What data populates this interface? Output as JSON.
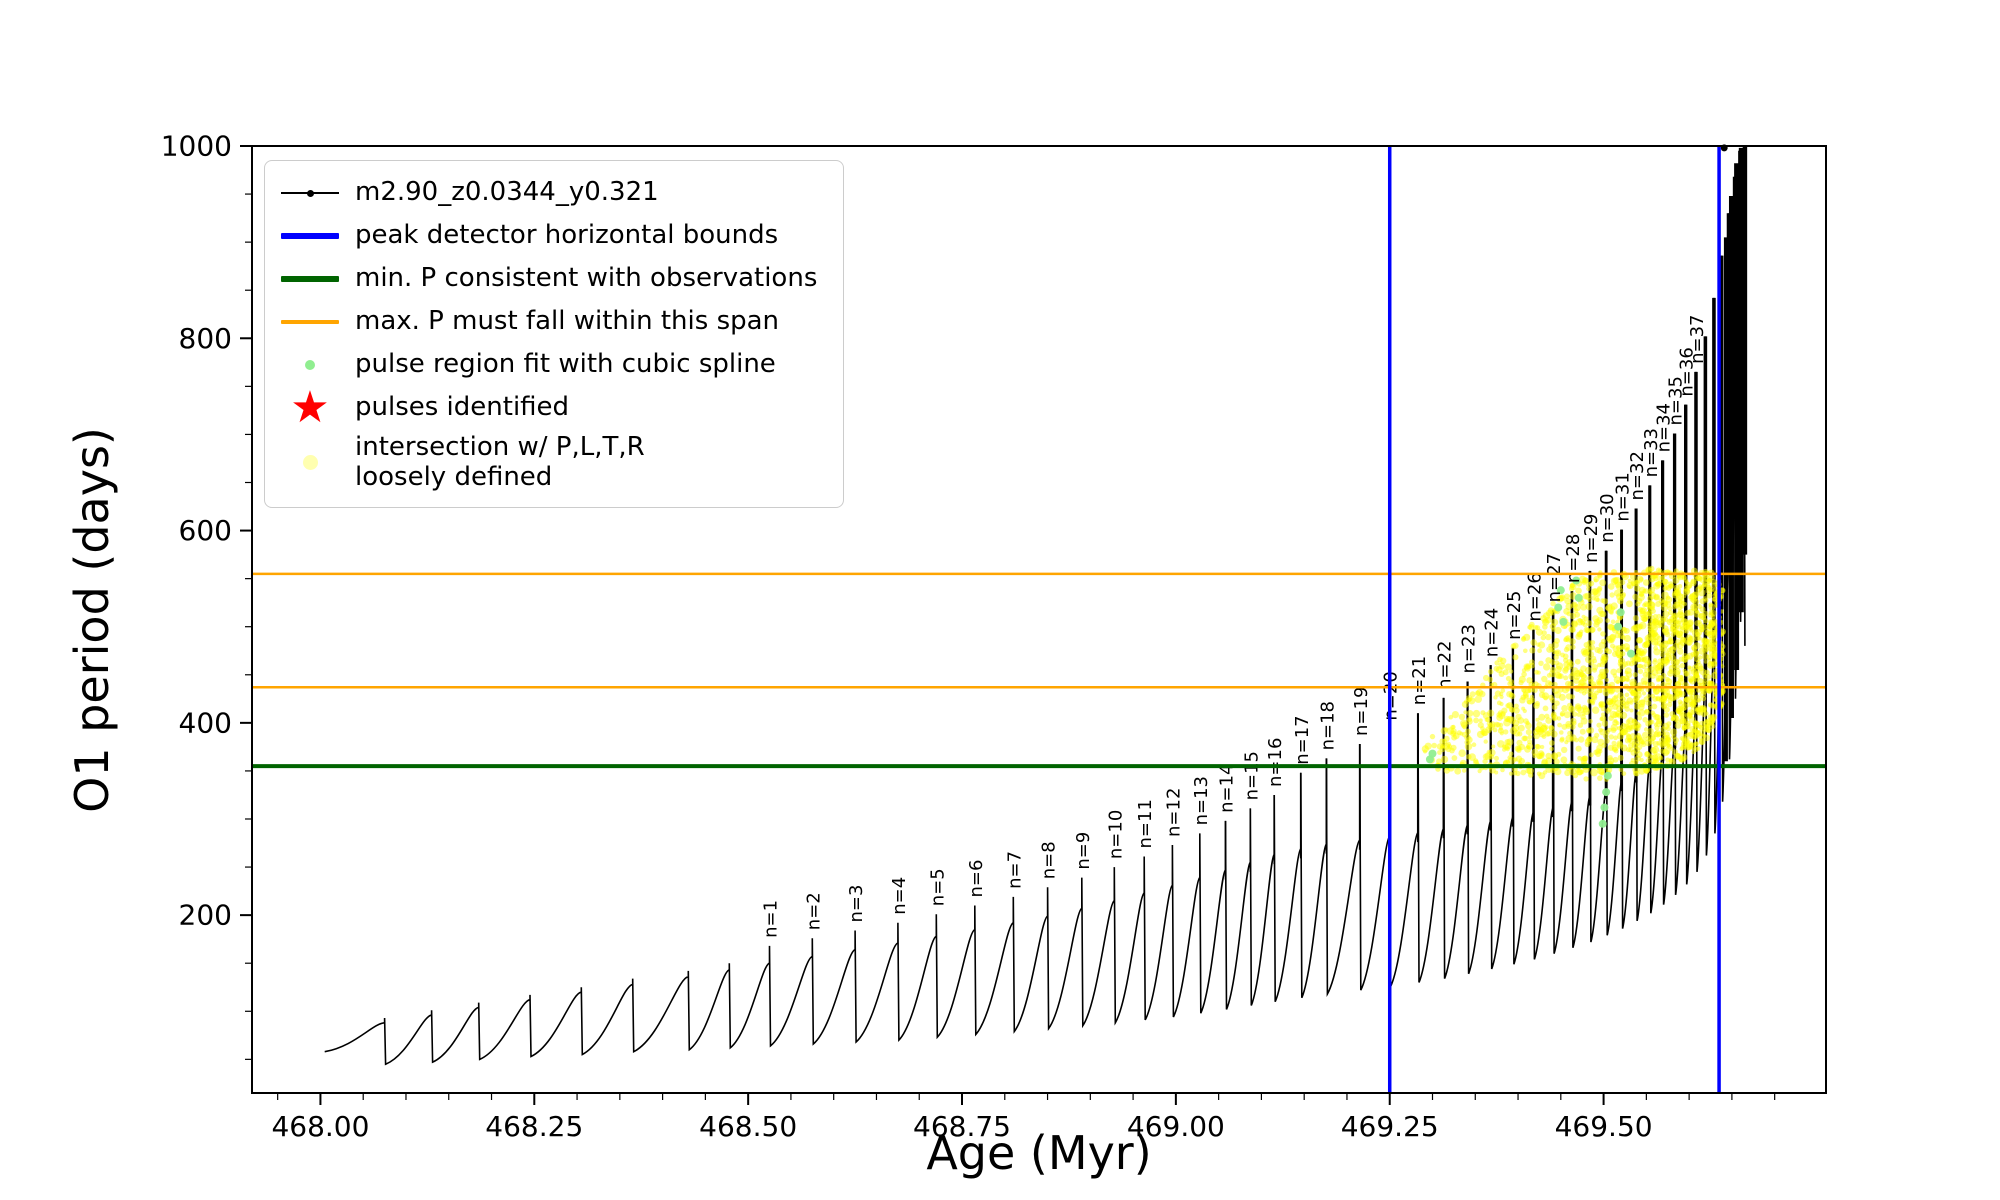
{
  "axes": {
    "xlabel": "Age (Myr)",
    "ylabel": "O1 period (days)"
  },
  "legend": {
    "entries": [
      {
        "marker": "line-dot",
        "color": "#000000",
        "label": "m2.90_z0.0344_y0.321"
      },
      {
        "marker": "line-thick",
        "color": "#0000ff",
        "label": "peak detector horizontal bounds"
      },
      {
        "marker": "line-thick",
        "color": "#006400",
        "label": "min. P consistent with observations"
      },
      {
        "marker": "line-thin",
        "color": "#ffa500",
        "label": "max. P must fall within this span"
      },
      {
        "marker": "dot-small",
        "color": "#90ee90",
        "label": "pulse region fit with cubic spline"
      },
      {
        "marker": "star",
        "color": "#ff0000",
        "label": "pulses identified"
      },
      {
        "marker": "dot-big",
        "color": "#ffffb0",
        "label": "intersection w/ P,L,T,R\nloosely defined"
      }
    ]
  },
  "chart_data": {
    "type": "line",
    "title": "",
    "xlabel": "Age (Myr)",
    "ylabel": "O1 period (days)",
    "xlim": [
      467.92,
      469.76
    ],
    "ylim": [
      15,
      1000
    ],
    "grid": false,
    "legend_position": "upper left",
    "series_name": "m2.90_z0.0344_y0.321",
    "xticks": {
      "values": [
        468.0,
        468.25,
        468.5,
        468.75,
        469.0,
        469.25,
        469.5
      ],
      "labels": [
        "468.00",
        "468.25",
        "468.50",
        "468.75",
        "469.00",
        "469.25",
        "469.50"
      ]
    },
    "yticks": {
      "values": [
        200,
        400,
        600,
        800,
        1000
      ],
      "labels": [
        "200",
        "400",
        "600",
        "800",
        "1000"
      ]
    },
    "xminor_step": 0.05,
    "yminor_step": 50,
    "line_color": "#000000",
    "vlines": {
      "color": "#0000ff",
      "x": [
        469.25,
        469.635
      ],
      "label": "peak detector horizontal bounds"
    },
    "hline_green": {
      "color": "#006400",
      "y": 355,
      "label": "min. P consistent with observations"
    },
    "hlines_orange": {
      "color": "#ffa500",
      "y": [
        437,
        555
      ],
      "label": "max. P must fall within this span"
    },
    "start": [
      468.005,
      58
    ],
    "end_drop": 480,
    "pulses": [
      [
        468.075,
        52,
        88,
        93,
        null
      ],
      [
        468.13,
        45,
        96,
        101,
        null
      ],
      [
        468.185,
        47,
        104,
        109,
        null
      ],
      [
        468.245,
        50,
        112,
        117,
        null
      ],
      [
        468.305,
        53,
        120,
        125,
        null
      ],
      [
        468.365,
        55,
        128,
        134,
        null
      ],
      [
        468.43,
        58,
        136,
        142,
        null
      ],
      [
        468.478,
        60,
        143,
        150,
        null
      ],
      [
        468.525,
        62,
        150,
        168,
        "n=1"
      ],
      [
        468.575,
        64,
        157,
        176,
        "n=2"
      ],
      [
        468.625,
        66,
        164,
        184,
        "n=3"
      ],
      [
        468.675,
        68,
        171,
        192,
        "n=4"
      ],
      [
        468.72,
        70,
        178,
        201,
        "n=5"
      ],
      [
        468.765,
        73,
        185,
        210,
        "n=6"
      ],
      [
        468.81,
        76,
        192,
        219,
        "n=7"
      ],
      [
        468.85,
        79,
        199,
        229,
        "n=8"
      ],
      [
        468.89,
        82,
        207,
        239,
        "n=9"
      ],
      [
        468.928,
        85,
        215,
        250,
        "n=10"
      ],
      [
        468.963,
        88,
        223,
        261,
        "n=11"
      ],
      [
        468.996,
        91,
        231,
        273,
        "n=12"
      ],
      [
        469.028,
        94,
        239,
        285,
        "n=13"
      ],
      [
        469.058,
        98,
        247,
        298,
        "n=14"
      ],
      [
        469.087,
        102,
        255,
        311,
        "n=15"
      ],
      [
        469.115,
        106,
        263,
        325,
        "n=16"
      ],
      [
        469.146,
        110,
        269,
        348,
        "n=17"
      ],
      [
        469.176,
        114,
        274,
        363,
        "n=18"
      ],
      [
        469.215,
        118,
        278,
        378,
        "n=19"
      ],
      [
        469.25,
        122,
        282,
        394,
        "n=20"
      ],
      [
        469.283,
        126,
        286,
        410,
        "n=21"
      ],
      [
        469.313,
        130,
        290,
        426,
        "n=22"
      ],
      [
        469.341,
        134,
        294,
        443,
        "n=23"
      ],
      [
        469.368,
        139,
        298,
        460,
        "n=24"
      ],
      [
        469.394,
        144,
        302,
        478,
        "n=25"
      ],
      [
        469.418,
        149,
        307,
        497,
        "n=26"
      ],
      [
        469.441,
        154,
        312,
        517,
        "n=27"
      ],
      [
        469.463,
        160,
        318,
        537,
        "n=28"
      ],
      [
        469.484,
        166,
        324,
        558,
        "n=29"
      ],
      [
        469.503,
        172,
        331,
        579,
        "n=30"
      ],
      [
        469.521,
        179,
        339,
        601,
        "n=31"
      ],
      [
        469.538,
        186,
        348,
        623,
        "n=32"
      ],
      [
        469.554,
        194,
        358,
        647,
        "n=33"
      ],
      [
        469.569,
        202,
        370,
        673,
        "n=34"
      ],
      [
        469.583,
        211,
        384,
        701,
        "n=35"
      ],
      [
        469.596,
        221,
        400,
        731,
        "n=36"
      ],
      [
        469.608,
        232,
        420,
        765,
        "n=37"
      ],
      [
        469.619,
        245,
        448,
        802,
        null
      ],
      [
        469.629,
        262,
        484,
        842,
        null
      ],
      [
        469.638,
        285,
        528,
        886,
        null
      ],
      [
        469.646,
        318,
        584,
        930,
        null
      ],
      [
        469.653,
        362,
        652,
        968,
        null
      ],
      [
        469.659,
        425,
        735,
        995,
        null
      ],
      [
        469.664,
        505,
        825,
        1000,
        null
      ]
    ],
    "cluster_lines": [
      [
        469.643,
        360,
        905,
        4
      ],
      [
        469.6495,
        405,
        948,
        5
      ],
      [
        469.6555,
        455,
        982,
        5
      ],
      [
        469.661,
        515,
        998,
        5
      ],
      [
        469.6655,
        575,
        1000,
        4
      ]
    ],
    "top_point": [
      469.641,
      998
    ],
    "yellow_band": {
      "color": "#ffff00",
      "opacity": 0.5,
      "count": 1800,
      "seed": 7,
      "x_bias": 0.5,
      "points": [
        [
          469.283,
          352,
          370
        ],
        [
          469.315,
          350,
          400
        ],
        [
          469.345,
          349,
          430
        ],
        [
          469.375,
          348,
          462
        ],
        [
          469.405,
          346,
          492
        ],
        [
          469.435,
          344,
          522
        ],
        [
          469.465,
          342,
          545
        ],
        [
          469.495,
          340,
          558
        ],
        [
          469.525,
          344,
          561
        ],
        [
          469.555,
          350,
          561
        ],
        [
          469.585,
          358,
          560
        ],
        [
          469.61,
          372,
          558
        ],
        [
          469.628,
          392,
          556
        ],
        [
          469.64,
          418,
          552
        ]
      ]
    },
    "green_points": {
      "color": "#90ee90",
      "points": [
        [
          469.297,
          362
        ],
        [
          469.3,
          368
        ],
        [
          469.447,
          520
        ],
        [
          469.45,
          538
        ],
        [
          469.453,
          505
        ],
        [
          469.468,
          548
        ],
        [
          469.471,
          530
        ],
        [
          469.499,
          295
        ],
        [
          469.501,
          312
        ],
        [
          469.503,
          328
        ],
        [
          469.505,
          345
        ],
        [
          469.517,
          500
        ],
        [
          469.52,
          515
        ],
        [
          469.532,
          472
        ]
      ]
    }
  }
}
